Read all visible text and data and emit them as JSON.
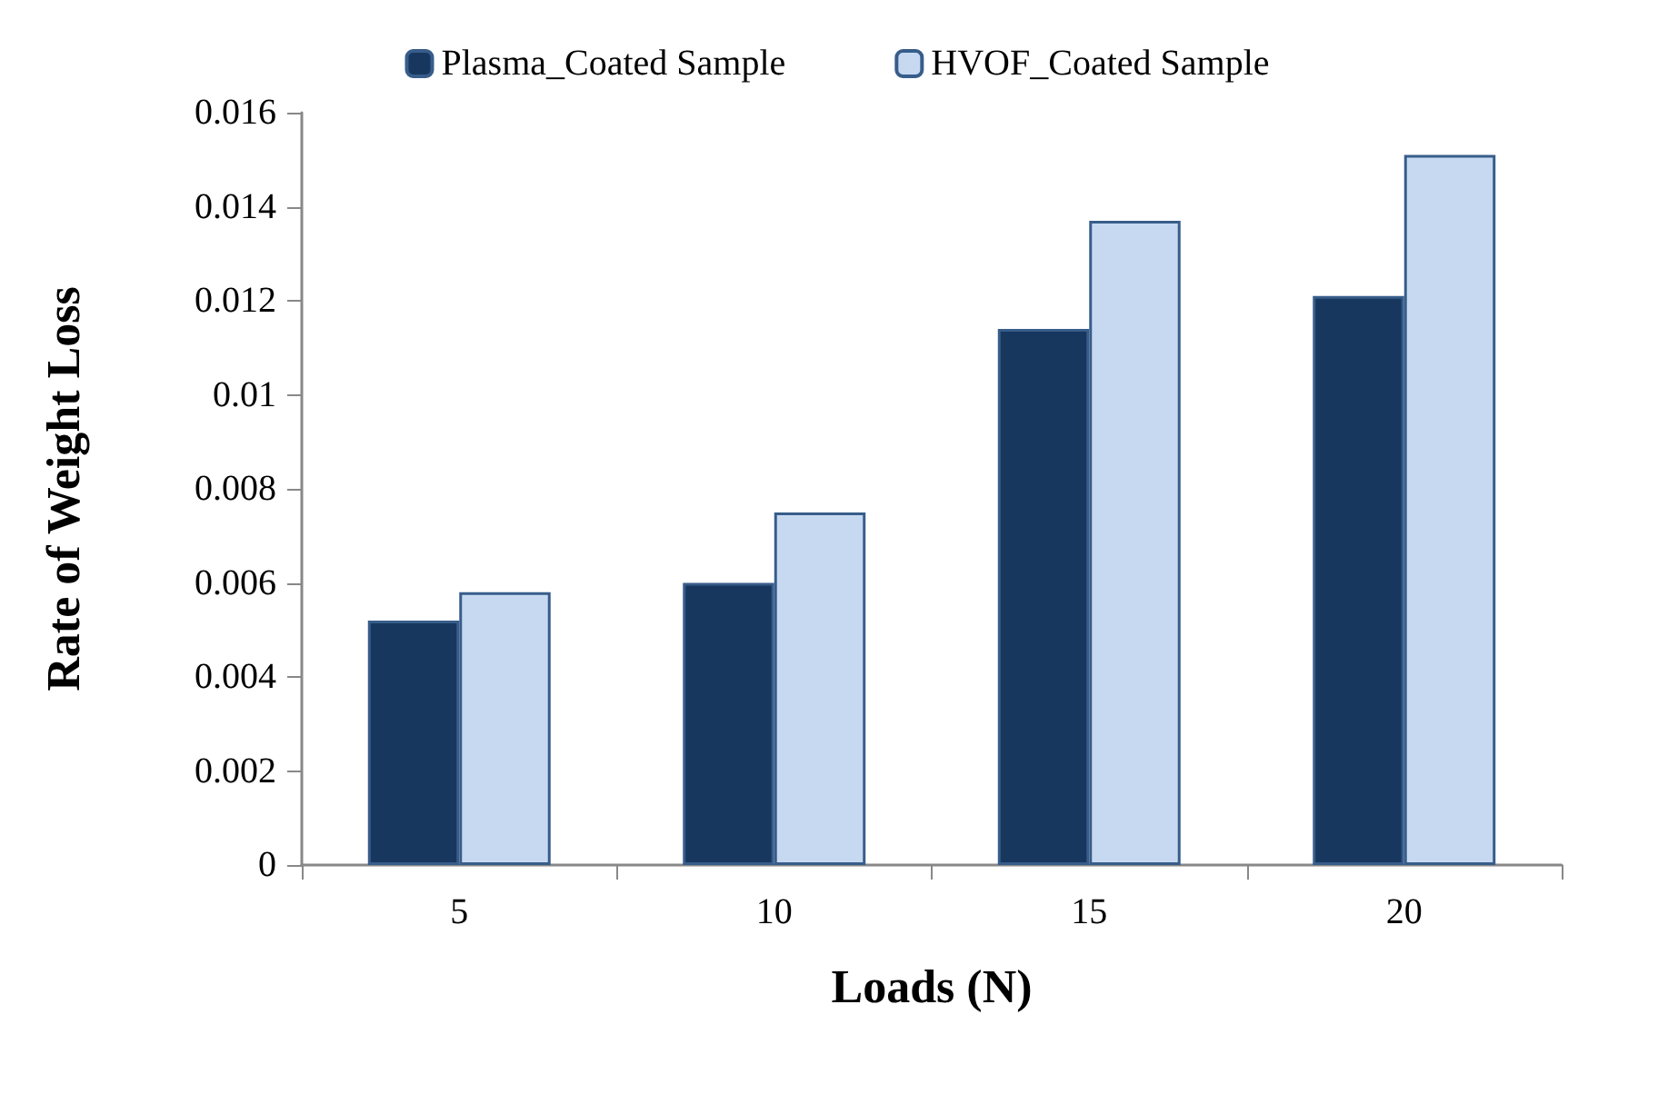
{
  "chart_data": {
    "type": "bar",
    "xlabel": "Loads (N)",
    "ylabel": "Rate of Weight Loss",
    "categories": [
      "5",
      "10",
      "15",
      "20"
    ],
    "series": [
      {
        "name": "Plasma_Coated Sample",
        "color": "#17375e",
        "values": [
          0.0052,
          0.006,
          0.0114,
          0.0121
        ]
      },
      {
        "name": "HVOF_Coated Sample",
        "color": "#c6d9f1",
        "values": [
          0.0058,
          0.0075,
          0.0137,
          0.0151
        ]
      }
    ],
    "ylim": [
      0,
      0.016
    ],
    "yticks": [
      0,
      0.002,
      0.004,
      0.006,
      0.008,
      0.01,
      0.012,
      0.014,
      0.016
    ],
    "grid": false,
    "legend": "top"
  }
}
